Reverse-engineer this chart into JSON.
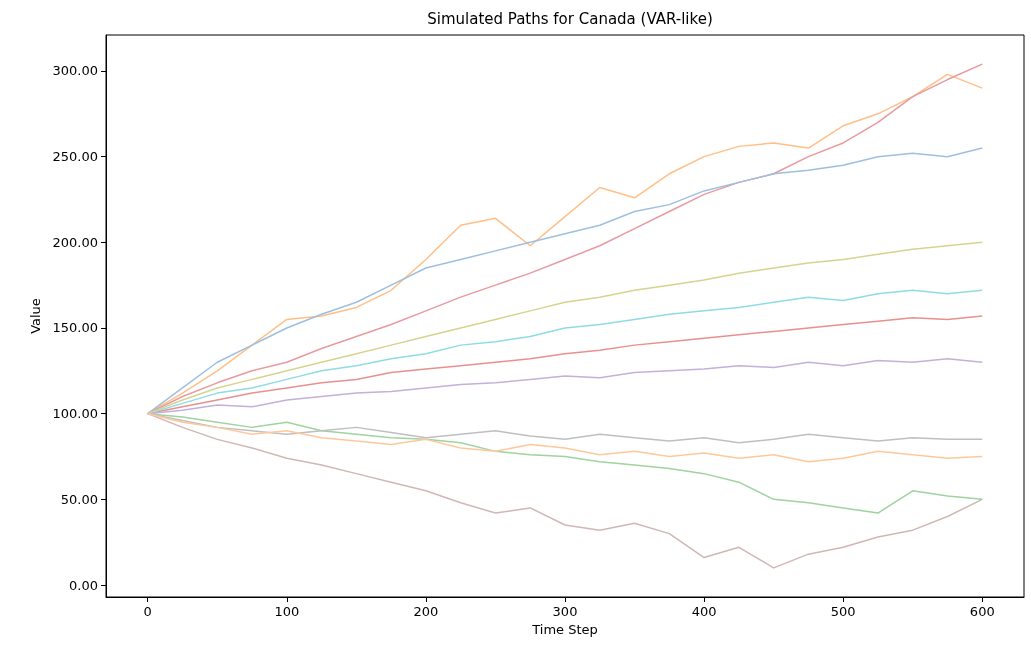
{
  "chart_data": {
    "type": "line",
    "title": "Simulated Paths for Canada (VAR-like)",
    "xlabel": "Time Step",
    "ylabel": "Value",
    "x": [
      0,
      25,
      50,
      75,
      100,
      125,
      150,
      175,
      200,
      225,
      250,
      275,
      300,
      325,
      350,
      375,
      400,
      425,
      450,
      475,
      500,
      525,
      550,
      575,
      600
    ],
    "xlim": [
      -30,
      630
    ],
    "xticks": [
      0,
      100,
      200,
      300,
      400,
      500,
      600
    ],
    "ylim": [
      -7,
      321
    ],
    "yticks": [
      {
        "value": 0,
        "label": "0.00"
      },
      {
        "value": 50,
        "label": "50.00"
      },
      {
        "value": 100,
        "label": "100.00"
      },
      {
        "value": 150,
        "label": "150.00"
      },
      {
        "value": 200,
        "label": "200.00"
      },
      {
        "value": 250,
        "label": "250.00"
      },
      {
        "value": 300,
        "label": "300.00"
      }
    ],
    "grid": false,
    "marker": "none",
    "line_style": "solid",
    "series": [
      {
        "color": "#ffbf86",
        "values": [
          100,
          112,
          125,
          140,
          155,
          157,
          162,
          172,
          190,
          210,
          214,
          198,
          215,
          232,
          226,
          240,
          250,
          256,
          258,
          255,
          268,
          275,
          285,
          298,
          290
        ]
      },
      {
        "color": "#cfb8b4",
        "values": [
          100,
          92,
          85,
          80,
          74,
          70,
          65,
          60,
          55,
          48,
          42,
          45,
          35,
          32,
          36,
          30,
          16,
          22,
          10,
          18,
          22,
          28,
          32,
          40,
          50
        ]
      },
      {
        "color": "#e89aa0",
        "values": [
          100,
          110,
          118,
          125,
          130,
          138,
          145,
          152,
          160,
          168,
          175,
          182,
          190,
          198,
          208,
          218,
          228,
          235,
          240,
          250,
          258,
          270,
          285,
          295,
          304
        ]
      },
      {
        "color": "#9dbfe0",
        "values": [
          100,
          115,
          130,
          140,
          150,
          158,
          165,
          175,
          185,
          190,
          195,
          200,
          205,
          210,
          218,
          222,
          230,
          235,
          240,
          242,
          245,
          250,
          252,
          250,
          255
        ]
      },
      {
        "color": "#9fd39f",
        "values": [
          100,
          98,
          95,
          92,
          95,
          90,
          88,
          86,
          85,
          83,
          78,
          76,
          75,
          72,
          70,
          68,
          65,
          60,
          50,
          48,
          45,
          42,
          55,
          52,
          50
        ]
      },
      {
        "color": "#e8908f",
        "values": [
          100,
          104,
          108,
          112,
          115,
          118,
          120,
          124,
          126,
          128,
          130,
          132,
          135,
          137,
          140,
          142,
          144,
          146,
          148,
          150,
          152,
          154,
          156,
          155,
          157
        ]
      },
      {
        "color": "#8fdbe4",
        "values": [
          100,
          106,
          112,
          115,
          120,
          125,
          128,
          132,
          135,
          140,
          142,
          145,
          150,
          152,
          155,
          158,
          160,
          162,
          165,
          168,
          166,
          170,
          172,
          170,
          172
        ]
      },
      {
        "color": "#c4b0d9",
        "values": [
          100,
          102,
          105,
          104,
          108,
          110,
          112,
          113,
          115,
          117,
          118,
          120,
          122,
          121,
          124,
          125,
          126,
          128,
          127,
          130,
          128,
          131,
          130,
          132,
          130
        ]
      },
      {
        "color": "#d4d48f",
        "values": [
          100,
          108,
          115,
          120,
          125,
          130,
          135,
          140,
          145,
          150,
          155,
          160,
          165,
          168,
          172,
          175,
          178,
          182,
          185,
          188,
          190,
          193,
          196,
          198,
          200
        ]
      },
      {
        "color": "#bfbfbf",
        "values": [
          100,
          96,
          92,
          90,
          88,
          90,
          92,
          89,
          86,
          88,
          90,
          87,
          85,
          88,
          86,
          84,
          86,
          83,
          85,
          88,
          86,
          84,
          86,
          85,
          85
        ]
      },
      {
        "color": "#ffc89a",
        "values": [
          100,
          95,
          92,
          88,
          90,
          86,
          84,
          82,
          85,
          80,
          78,
          82,
          80,
          76,
          78,
          75,
          77,
          74,
          76,
          72,
          74,
          78,
          76,
          74,
          75
        ]
      }
    ]
  }
}
